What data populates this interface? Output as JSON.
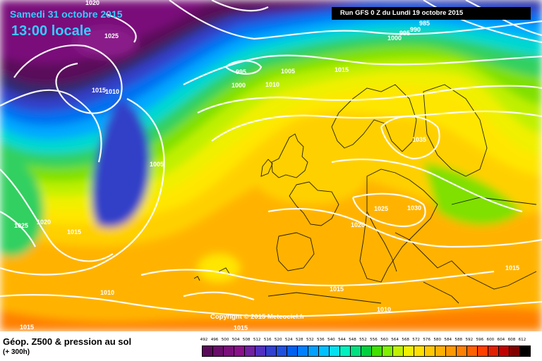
{
  "header": {
    "date": "Samedi 31 octobre 2015",
    "time": "13:00 locale",
    "run": "Run GFS 0 Z du Lundi 19 octobre 2015"
  },
  "copyright": "Copyright © 2015 Meteociel.fr",
  "legend": {
    "title": "Géop. Z500 & pression au sol",
    "subtitle": "(+ 300h)",
    "scale": [
      "492",
      "496",
      "500",
      "504",
      "508",
      "512",
      "516",
      "520",
      "524",
      "528",
      "532",
      "536",
      "540",
      "544",
      "548",
      "552",
      "556",
      "560",
      "564",
      "568",
      "572",
      "576",
      "580",
      "584",
      "588",
      "592",
      "596",
      "600",
      "604",
      "608",
      "612"
    ],
    "colors": [
      "#5a0a5a",
      "#6a0c6a",
      "#7a0e7a",
      "#8a108a",
      "#7020a0",
      "#5030c0",
      "#3040d0",
      "#2050e0",
      "#0060f0",
      "#0080ff",
      "#00a0ff",
      "#00c0ff",
      "#00e0f0",
      "#00f0c0",
      "#00e080",
      "#00d040",
      "#40e000",
      "#80f000",
      "#c0f000",
      "#f0f000",
      "#ffe000",
      "#ffc800",
      "#ffb000",
      "#ff9800",
      "#ff8000",
      "#ff6000",
      "#ff4000",
      "#e02000",
      "#c00000",
      "#800000",
      "#000000"
    ]
  },
  "isobars": [
    {
      "label": "1020"
    },
    {
      "label": "1025"
    },
    {
      "label": "985"
    },
    {
      "label": "990"
    },
    {
      "label": "995"
    },
    {
      "label": "1000"
    },
    {
      "label": "995"
    },
    {
      "label": "1005"
    },
    {
      "label": "1015"
    },
    {
      "label": "1000"
    },
    {
      "label": "1010"
    },
    {
      "label": "1015"
    },
    {
      "label": "1010"
    },
    {
      "label": "1005"
    },
    {
      "label": "1035"
    },
    {
      "label": "1025"
    },
    {
      "label": "1020"
    },
    {
      "label": "1015"
    },
    {
      "label": "1025"
    },
    {
      "label": "1030"
    },
    {
      "label": "1020"
    },
    {
      "label": "1015"
    },
    {
      "label": "1010"
    },
    {
      "label": "1015"
    },
    {
      "label": "1010"
    },
    {
      "label": "1015"
    },
    {
      "label": "1015"
    }
  ]
}
